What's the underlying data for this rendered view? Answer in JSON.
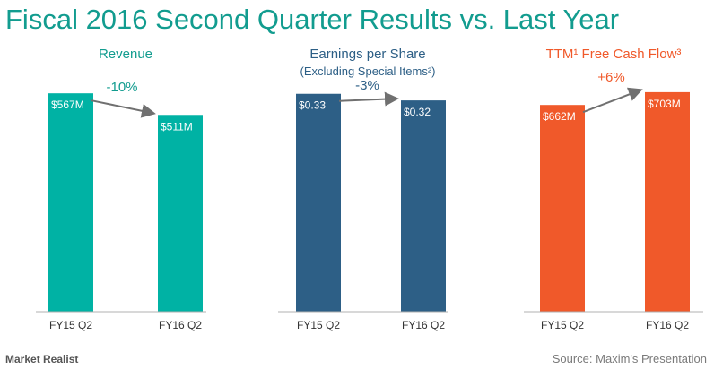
{
  "title": "Fiscal 2016 Second Quarter Results vs. Last Year",
  "source": "Source: Maxim's Presentation",
  "brand": "Market Realist",
  "colors": {
    "revenue": "#00b2a4",
    "eps": "#2d5f86",
    "fcf": "#f0592a",
    "title": "#129c8f"
  },
  "chart_data": [
    {
      "type": "bar",
      "title": "Revenue",
      "subtitle": "",
      "categories": [
        "FY15 Q2",
        "FY16 Q2"
      ],
      "values": [
        567,
        511
      ],
      "value_labels": [
        "$567M",
        "$511M"
      ],
      "unit": "$M",
      "change_label": "-10%",
      "ylim": [
        0,
        600
      ]
    },
    {
      "type": "bar",
      "title": "Earnings per Share",
      "subtitle": "(Excluding Special Items²)",
      "categories": [
        "FY15 Q2",
        "FY16 Q2"
      ],
      "values": [
        0.33,
        0.32
      ],
      "value_labels": [
        "$0.33",
        "$0.32"
      ],
      "unit": "$",
      "change_label": "-3%",
      "ylim": [
        0,
        0.35
      ]
    },
    {
      "type": "bar",
      "title": "TTM¹ Free Cash Flow³",
      "subtitle": "",
      "categories": [
        "FY15 Q2",
        "FY16 Q2"
      ],
      "values": [
        662,
        703
      ],
      "value_labels": [
        "$662M",
        "$703M"
      ],
      "unit": "$M",
      "change_label": "+6%",
      "ylim": [
        0,
        740
      ]
    }
  ]
}
